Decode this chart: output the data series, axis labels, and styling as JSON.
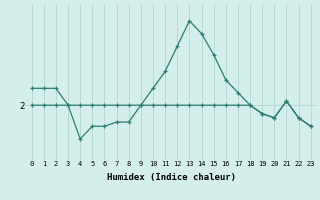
{
  "xlabel": "Humidex (Indice chaleur)",
  "bg_color": "#d4eeeb",
  "line_color": "#2e7d72",
  "grid_color": "#b8d8d4",
  "x_values": [
    0,
    1,
    2,
    3,
    4,
    5,
    6,
    7,
    8,
    9,
    10,
    11,
    12,
    13,
    14,
    15,
    16,
    17,
    18,
    19,
    20,
    21,
    22,
    23
  ],
  "line1": [
    2.2,
    2.2,
    2.2,
    2.0,
    1.6,
    1.75,
    1.75,
    1.8,
    1.8,
    2.0,
    2.2,
    2.4,
    2.7,
    3.0,
    2.85,
    2.6,
    2.3,
    2.15,
    2.0,
    1.9,
    1.85,
    2.05,
    1.85,
    1.75
  ],
  "line2": [
    2.0,
    2.0,
    2.0,
    2.0,
    2.0,
    2.0,
    2.0,
    2.0,
    2.0,
    2.0,
    2.0,
    2.0,
    2.0,
    2.0,
    2.0,
    2.0,
    2.0,
    2.0,
    2.0,
    1.9,
    1.85,
    2.05,
    1.85,
    1.75
  ],
  "ytick_label": "2",
  "ytick_value": 2.0,
  "xlim": [
    -0.5,
    23.5
  ],
  "ylim": [
    1.35,
    3.2
  ]
}
